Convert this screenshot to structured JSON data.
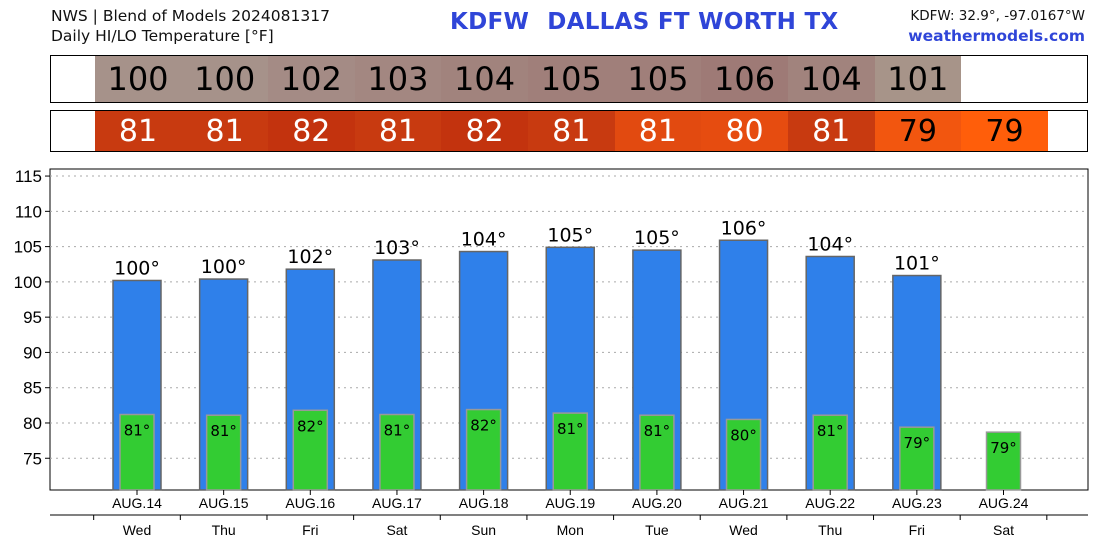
{
  "header": {
    "source_line": "NWS | Blend of Models 2024081317",
    "product_line": "Daily HI/LO Temperature [°F]",
    "station_id": "KDFW",
    "station_name": "DALLAS FT WORTH TX",
    "coords": "KDFW: 32.9°, -97.0167°W",
    "site": "weathermodels.com"
  },
  "strips": {
    "hi": [
      {
        "value": "100",
        "color": "#a6928a"
      },
      {
        "value": "100",
        "color": "#a6928a"
      },
      {
        "value": "102",
        "color": "#a48b85"
      },
      {
        "value": "103",
        "color": "#a38781"
      },
      {
        "value": "104",
        "color": "#a1837d"
      },
      {
        "value": "105",
        "color": "#a07f7a"
      },
      {
        "value": "105",
        "color": "#a07f7a"
      },
      {
        "value": "106",
        "color": "#9e7a76"
      },
      {
        "value": "104",
        "color": "#a1837d"
      },
      {
        "value": "101",
        "color": "#a79489"
      }
    ],
    "lo": [
      {
        "value": "81",
        "color": "#c83a10",
        "text_color": "#ffffff"
      },
      {
        "value": "81",
        "color": "#c83a10",
        "text_color": "#ffffff"
      },
      {
        "value": "82",
        "color": "#c3330e",
        "text_color": "#ffffff"
      },
      {
        "value": "81",
        "color": "#c83a10",
        "text_color": "#ffffff"
      },
      {
        "value": "82",
        "color": "#c3330e",
        "text_color": "#ffffff"
      },
      {
        "value": "81",
        "color": "#c83a10",
        "text_color": "#ffffff"
      },
      {
        "value": "81",
        "color": "#e24a10",
        "text_color": "#ffffff"
      },
      {
        "value": "80",
        "color": "#e64c10",
        "text_color": "#ffffff"
      },
      {
        "value": "81",
        "color": "#c83a10",
        "text_color": "#ffffff"
      },
      {
        "value": "79",
        "color": "#f2560f",
        "text_color": "#000000"
      },
      {
        "value": "79",
        "color": "#ff5e0a",
        "text_color": "#000000"
      }
    ]
  },
  "colors": {
    "hi_bar": "#2f80ea",
    "lo_bar": "#33cc33",
    "grid": "#aaaaaa",
    "bar_stroke": "#666666"
  },
  "chart_data": {
    "type": "bar",
    "categories": [
      "AUG.14",
      "AUG.15",
      "AUG.16",
      "AUG.17",
      "AUG.18",
      "AUG.19",
      "AUG.20",
      "AUG.21",
      "AUG.22",
      "AUG.23",
      "AUG.24"
    ],
    "days": [
      "Wed",
      "Thu",
      "Fri",
      "Sat",
      "Sun",
      "Mon",
      "Tue",
      "Wed",
      "Thu",
      "Fri",
      "Sat"
    ],
    "series": [
      {
        "values": [
          100.2,
          100.4,
          101.8,
          103.1,
          104.3,
          104.9,
          104.5,
          105.9,
          103.6,
          100.9,
          null
        ],
        "labels": [
          "100°",
          "100°",
          "102°",
          "103°",
          "104°",
          "105°",
          "105°",
          "106°",
          "104°",
          "101°",
          ""
        ]
      },
      {
        "values": [
          81.2,
          81.1,
          81.8,
          81.2,
          81.9,
          81.4,
          81.1,
          80.5,
          81.1,
          79.4,
          78.7
        ],
        "labels": [
          "81°",
          "81°",
          "82°",
          "81°",
          "82°",
          "81°",
          "81°",
          "80°",
          "81°",
          "79°",
          "79°"
        ]
      }
    ],
    "y_ticks": [
      75,
      80,
      85,
      90,
      95,
      100,
      105,
      110,
      115
    ],
    "ylim": [
      70.5,
      116
    ],
    "grid": true
  }
}
